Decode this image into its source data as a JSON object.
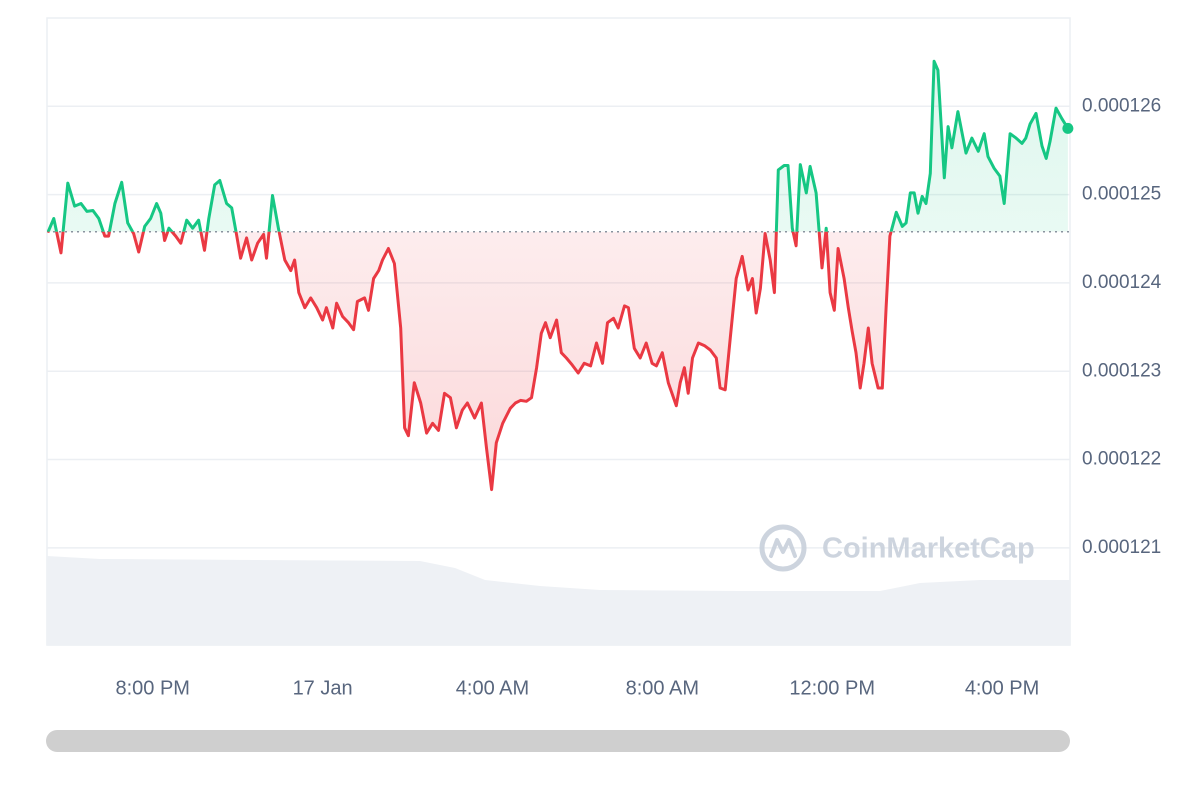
{
  "chart_data": {
    "type": "line",
    "watermark": "CoinMarketCap",
    "x": [
      -6.47,
      -6.33,
      -6.16,
      -6.0,
      -5.84,
      -5.69,
      -5.55,
      -5.41,
      -5.27,
      -5.13,
      -5.04,
      -4.89,
      -4.73,
      -4.59,
      -4.45,
      -4.33,
      -4.19,
      -4.05,
      -3.91,
      -3.81,
      -3.72,
      -3.62,
      -3.46,
      -3.34,
      -3.2,
      -3.06,
      -2.92,
      -2.78,
      -2.68,
      -2.54,
      -2.42,
      -2.26,
      -2.14,
      -2.02,
      -1.93,
      -1.79,
      -1.67,
      -1.53,
      -1.39,
      -1.32,
      -1.18,
      -1.04,
      -0.89,
      -0.75,
      -0.66,
      -0.56,
      -0.42,
      -0.28,
      -0.14,
      0,
      0.09,
      0.24,
      0.33,
      0.47,
      0.61,
      0.73,
      0.82,
      0.99,
      1.08,
      1.2,
      1.32,
      1.41,
      1.55,
      1.69,
      1.84,
      1.93,
      2.02,
      2.16,
      2.31,
      2.45,
      2.59,
      2.73,
      2.87,
      3.01,
      3.15,
      3.29,
      3.41,
      3.58,
      3.74,
      3.86,
      3.98,
      4.09,
      4.24,
      4.42,
      4.54,
      4.66,
      4.8,
      4.92,
      5.04,
      5.15,
      5.25,
      5.36,
      5.51,
      5.62,
      5.74,
      5.88,
      6.02,
      6.16,
      6.31,
      6.45,
      6.59,
      6.71,
      6.85,
      6.96,
      7.11,
      7.2,
      7.34,
      7.48,
      7.62,
      7.76,
      7.86,
      8.0,
      8.14,
      8.33,
      8.42,
      8.52,
      8.61,
      8.71,
      8.85,
      8.99,
      9.13,
      9.27,
      9.36,
      9.48,
      9.6,
      9.74,
      9.88,
      10.02,
      10.12,
      10.21,
      10.31,
      10.42,
      10.54,
      10.64,
      10.73,
      10.87,
      10.96,
      11.06,
      11.15,
      11.25,
      11.39,
      11.48,
      11.62,
      11.76,
      11.86,
      11.95,
      12.05,
      12.14,
      12.28,
      12.38,
      12.47,
      12.56,
      12.66,
      12.75,
      12.85,
      12.94,
      13.08,
      13.18,
      13.27,
      13.36,
      13.51,
      13.65,
      13.74,
      13.84,
      13.93,
      14.02,
      14.12,
      14.21,
      14.31,
      14.4,
      14.49,
      14.64,
      14.73,
      14.82,
      14.96,
      15.15,
      15.29,
      15.44,
      15.58,
      15.67,
      15.81,
      15.95,
      16.05,
      16.19,
      16.33,
      16.47,
      16.56,
      16.66,
      16.8,
      16.94,
      17.04,
      17.13,
      17.27,
      17.41,
      17.55
    ],
    "values": [
      0.00012457,
      0.00012473,
      0.00012434,
      0.00012513,
      0.00012487,
      0.0001249,
      0.00012481,
      0.00012482,
      0.00012473,
      0.00012453,
      0.00012453,
      0.0001249,
      0.00012514,
      0.00012468,
      0.00012456,
      0.00012435,
      0.00012464,
      0.00012473,
      0.0001249,
      0.00012479,
      0.00012448,
      0.00012462,
      0.00012453,
      0.00012445,
      0.00012471,
      0.00012462,
      0.00012471,
      0.00012437,
      0.00012473,
      0.00012511,
      0.00012516,
      0.0001249,
      0.00012485,
      0.00012453,
      0.00012428,
      0.00012451,
      0.00012426,
      0.00012445,
      0.00012455,
      0.00012428,
      0.00012499,
      0.00012462,
      0.00012426,
      0.00012414,
      0.00012426,
      0.00012389,
      0.00012372,
      0.00012383,
      0.00012372,
      0.00012358,
      0.00012372,
      0.00012349,
      0.00012377,
      0.00012362,
      0.00012355,
      0.00012347,
      0.00012379,
      0.00012383,
      0.00012369,
      0.00012405,
      0.00012414,
      0.00012426,
      0.00012439,
      0.00012422,
      0.00012349,
      0.00012236,
      0.00012227,
      0.00012287,
      0.00012264,
      0.0001223,
      0.00012241,
      0.00012233,
      0.00012275,
      0.0001227,
      0.00012236,
      0.00012256,
      0.00012264,
      0.00012247,
      0.00012264,
      0.00012213,
      0.00012166,
      0.00012219,
      0.00012241,
      0.00012258,
      0.00012264,
      0.00012267,
      0.00012266,
      0.0001227,
      0.00012304,
      0.00012343,
      0.00012355,
      0.00012338,
      0.00012358,
      0.00012321,
      0.00012315,
      0.00012307,
      0.00012298,
      0.00012309,
      0.00012306,
      0.00012332,
      0.00012309,
      0.00012355,
      0.0001236,
      0.00012349,
      0.00012374,
      0.00012372,
      0.00012326,
      0.00012315,
      0.00012332,
      0.00012309,
      0.00012306,
      0.00012321,
      0.00012287,
      0.00012261,
      0.00012287,
      0.00012304,
      0.00012275,
      0.00012315,
      0.00012332,
      0.00012329,
      0.00012324,
      0.00012315,
      0.00012281,
      0.00012279,
      0.00012338,
      0.00012405,
      0.0001243,
      0.00012392,
      0.00012405,
      0.00012366,
      0.00012394,
      0.00012456,
      0.00012426,
      0.00012389,
      0.00012528,
      0.00012533,
      0.00012533,
      0.00012462,
      0.00012442,
      0.00012534,
      0.00012502,
      0.00012532,
      0.00012502,
      0.00012417,
      0.00012462,
      0.00012389,
      0.00012369,
      0.00012439,
      0.00012405,
      0.00012372,
      0.00012345,
      0.00012321,
      0.00012281,
      0.00012309,
      0.00012349,
      0.00012309,
      0.00012281,
      0.00012281,
      0.00012372,
      0.00012453,
      0.0001248,
      0.00012464,
      0.00012468,
      0.00012502,
      0.00012502,
      0.00012479,
      0.00012498,
      0.0001249,
      0.00012524,
      0.00012651,
      0.00012641,
      0.00012519,
      0.00012577,
      0.00012553,
      0.00012594,
      0.00012547,
      0.00012564,
      0.00012549,
      0.00012569,
      0.00012543,
      0.0001253,
      0.00012521,
      0.0001249,
      0.00012569,
      0.00012564,
      0.00012558,
      0.00012564,
      0.0001258,
      0.00012592,
      0.00012555,
      0.00012541,
      0.0001256,
      0.00012598,
      0.00012586,
      0.00012575
    ],
    "baseline": 0.00012458,
    "color_up": "#16c784",
    "color_down": "#ea3943",
    "xlim": [
      -6.49,
      17.6
    ],
    "ylim": [
      0.0001199,
      0.000127
    ],
    "xticks": [
      {
        "value": -4,
        "label": "8:00 PM"
      },
      {
        "value": 0,
        "label": "17 Jan"
      },
      {
        "value": 4,
        "label": "4:00 AM"
      },
      {
        "value": 8,
        "label": "8:00 AM"
      },
      {
        "value": 12,
        "label": "12:00 PM"
      },
      {
        "value": 16,
        "label": "4:00 PM"
      }
    ],
    "yticks": [
      0.000121,
      0.000122,
      0.000123,
      0.000124,
      0.000125,
      0.000126
    ],
    "grid": true
  }
}
